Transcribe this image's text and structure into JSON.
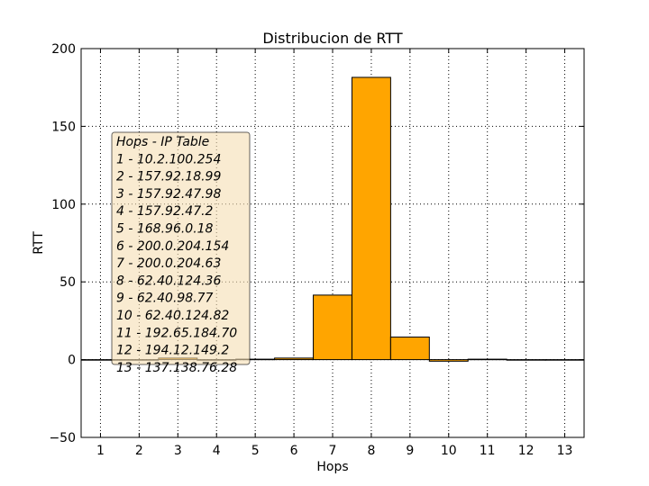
{
  "chart_data": {
    "type": "bar",
    "title": "Distribucion de RTT",
    "xlabel": "Hops",
    "ylabel": "RTT",
    "categories": [
      "1",
      "2",
      "3",
      "4",
      "5",
      "6",
      "7",
      "8",
      "9",
      "10",
      "11",
      "12",
      "13"
    ],
    "values": [
      0,
      0,
      1,
      0,
      0.3,
      1,
      41.5,
      181.5,
      14.5,
      -1,
      0.3,
      0,
      0
    ],
    "ylim": [
      -50,
      200
    ],
    "xlim": [
      0.5,
      13.5
    ],
    "yticks": [
      "-50",
      "0",
      "50",
      "100",
      "150",
      "200"
    ],
    "grid": true,
    "bar_color": "#ffa500",
    "annotation": {
      "title": "Hops - IP Table",
      "lines": [
        "1 - 10.2.100.254",
        "2 - 157.92.18.99",
        "3 - 157.92.47.98",
        "4 - 157.92.47.2",
        "5 - 168.96.0.18",
        "6 - 200.0.204.154",
        "7 - 200.0.204.63",
        "8 - 62.40.124.36",
        "9 - 62.40.98.77",
        "10 - 62.40.124.82",
        "11 - 192.65.184.70",
        "12 - 194.12.149.2",
        "13 - 137.138.76.28"
      ]
    }
  }
}
